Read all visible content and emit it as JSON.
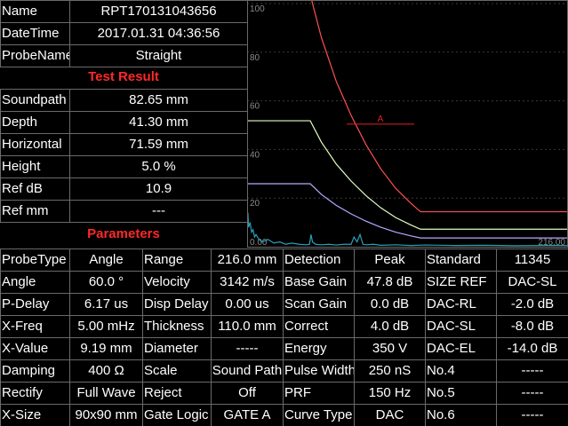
{
  "info": {
    "rows": [
      [
        "Name",
        "RPT170131043656"
      ],
      [
        "DateTime",
        "2017.01.31  04:36:56"
      ],
      [
        "ProbeName",
        "Straight"
      ]
    ]
  },
  "test_result": {
    "title": "Test Result",
    "rows": [
      [
        "Soundpath",
        "82.65 mm"
      ],
      [
        "Depth",
        "41.30 mm"
      ],
      [
        "Horizontal",
        "71.59 mm"
      ],
      [
        "Height",
        "5.0 %"
      ],
      [
        "Ref dB",
        "10.9"
      ],
      [
        "Ref mm",
        "---"
      ]
    ]
  },
  "parameters": {
    "title": "Parameters",
    "rows": [
      [
        "ProbeType",
        "Angle",
        "Range",
        "216.0 mm",
        "Detection",
        "Peak",
        "Standard",
        "11345"
      ],
      [
        "Angle",
        "60.0 °",
        "Velocity",
        "3142 m/s",
        "Base Gain",
        "47.8 dB",
        "SIZE REF",
        "DAC-SL"
      ],
      [
        "P-Delay",
        "6.17 us",
        "Disp Delay",
        "0.00 us",
        "Scan Gain",
        "0.0 dB",
        "DAC-RL",
        "-2.0 dB"
      ],
      [
        "X-Freq",
        "5.00 mHz",
        "Thickness",
        "110.0 mm",
        "Correct",
        "4.0 dB",
        "DAC-SL",
        "-8.0 dB"
      ],
      [
        "X-Value",
        "9.19 mm",
        "Diameter",
        "-----",
        "Energy",
        "350 V",
        "DAC-EL",
        "-14.0 dB"
      ],
      [
        "Damping",
        "400 Ω",
        "Scale",
        "Sound Path",
        "Pulse Width",
        "250 nS",
        "No.4",
        "-----"
      ],
      [
        "Rectify",
        "Full Wave",
        "Reject",
        "Off",
        "PRF",
        "150 Hz",
        "No.5",
        "-----"
      ],
      [
        "X-Size",
        "90x90 mm",
        "Gate Logic",
        "GATE A",
        "Curve Type",
        "DAC",
        "No.6",
        "-----"
      ]
    ]
  },
  "chart_data": {
    "type": "line",
    "xlim": [
      0,
      216
    ],
    "ylim": [
      0,
      100
    ],
    "xticks": [
      {
        "value": 0,
        "label": "0.00"
      },
      {
        "value": 216,
        "label": "216.00"
      }
    ],
    "yticks": [
      20,
      40,
      60,
      80,
      100
    ],
    "grid": true,
    "gate": {
      "label": "A",
      "start": 67,
      "end": 112.5,
      "level": 50.4,
      "color": "#e02020"
    },
    "series": [
      {
        "color": "#ff5050",
        "x": [
          0,
          42.5,
          50,
          60,
          70,
          80,
          90,
          100,
          110,
          116.7,
          216
        ],
        "values": [
          103.6,
          103.6,
          86,
          68,
          54,
          42,
          32,
          24,
          18,
          14.4,
          14.4
        ]
      },
      {
        "color": "#e0ffc0",
        "x": [
          0,
          42.5,
          50,
          60,
          70,
          80,
          90,
          100,
          110,
          116.7,
          216
        ],
        "values": [
          51.8,
          51.8,
          43,
          34,
          27,
          21,
          16,
          12,
          9,
          7.2,
          7.2
        ]
      },
      {
        "color": "#b8a8ff",
        "x": [
          0,
          42.5,
          50,
          60,
          70,
          80,
          90,
          100,
          110,
          116.7,
          216
        ],
        "values": [
          25.9,
          25.9,
          21.5,
          17,
          13.5,
          10.5,
          8,
          6,
          4.5,
          3.6,
          3.6
        ]
      },
      {
        "color": "#2aa0b8",
        "x": [
          0,
          0.5,
          1,
          2,
          3,
          4,
          5,
          6,
          8,
          10,
          14,
          18,
          22,
          26,
          30,
          35,
          40,
          42,
          43,
          44,
          46,
          50,
          55,
          60,
          65,
          70,
          72,
          74,
          76,
          78,
          80,
          85,
          90,
          100,
          110,
          120,
          140,
          160,
          180,
          200,
          216
        ],
        "values": [
          12,
          14,
          8,
          10,
          6,
          7,
          4,
          5,
          3,
          2,
          3,
          1.5,
          2,
          1,
          1.5,
          1,
          0.8,
          1,
          5,
          2,
          1,
          0.8,
          1,
          0.7,
          1,
          1,
          4,
          2,
          5,
          1,
          0.8,
          1,
          0.6,
          0.8,
          0.5,
          0.7,
          0.5,
          0.6,
          0.4,
          0.5,
          0.5
        ]
      }
    ]
  }
}
